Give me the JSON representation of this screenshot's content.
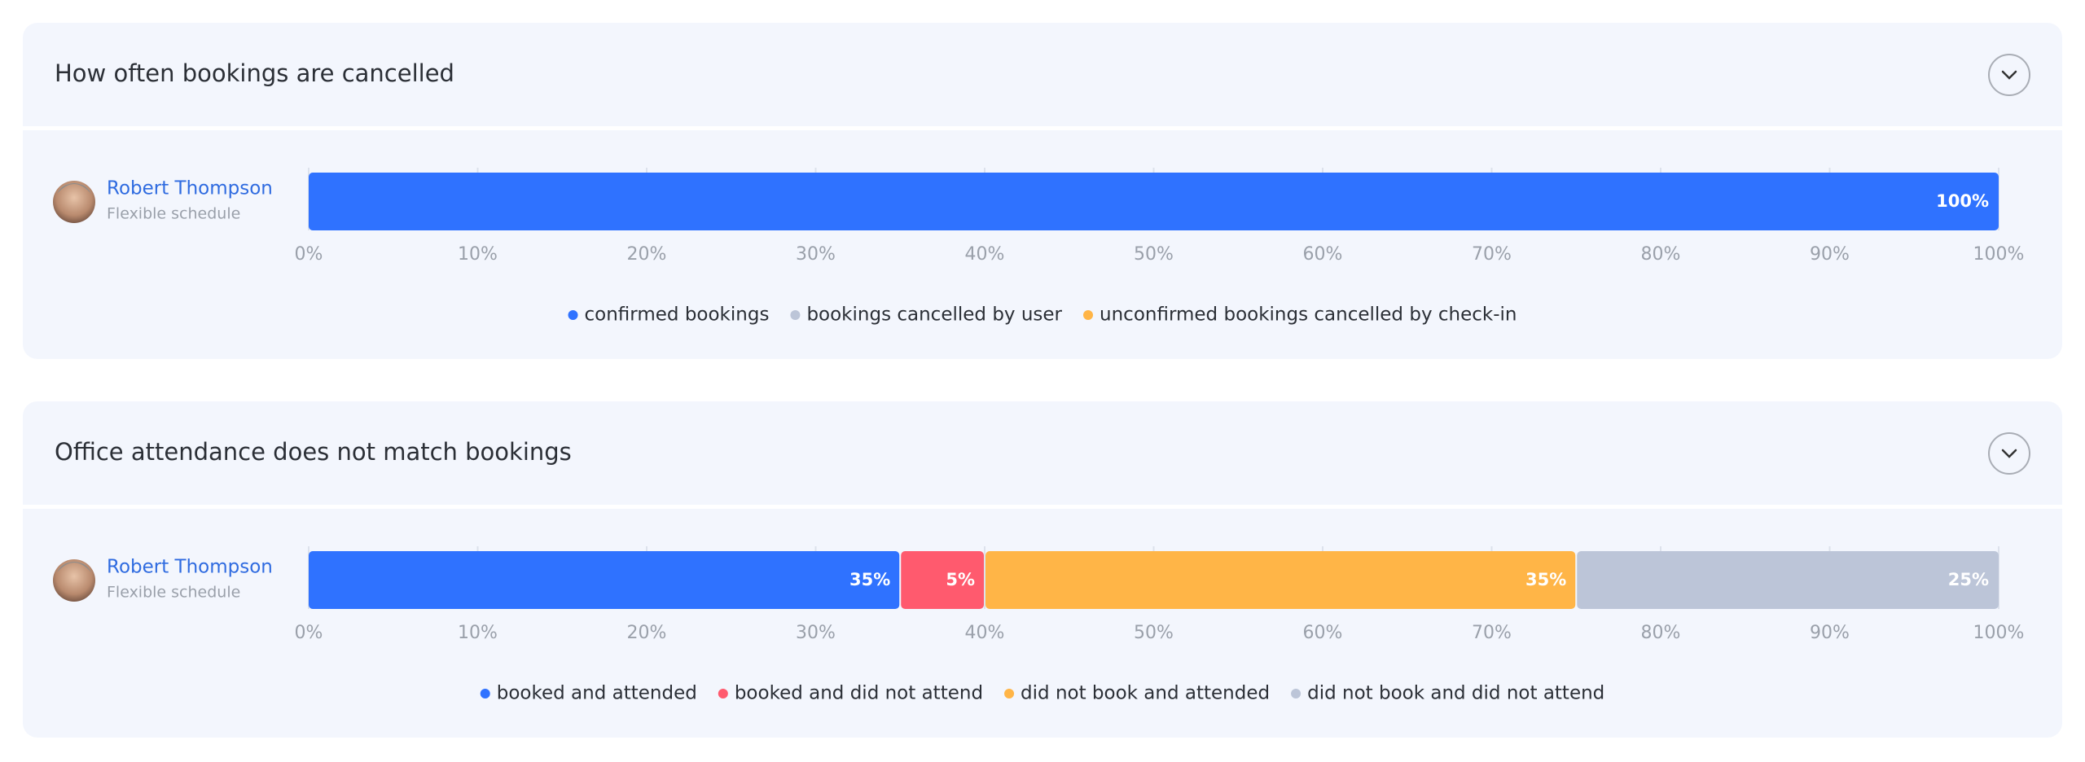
{
  "chart_data": [
    {
      "type": "stacked-bar",
      "title": "How often bookings are cancelled",
      "categories": [
        "Robert Thompson"
      ],
      "category_subtitles": [
        "Flexible schedule"
      ],
      "series": [
        {
          "name": "confirmed bookings",
          "color": "#2f72ff",
          "values": [
            100
          ],
          "value_labels": [
            "100%"
          ]
        },
        {
          "name": "bookings cancelled by user",
          "color": "#bcc5d8",
          "values": [
            0
          ]
        },
        {
          "name": "unconfirmed bookings cancelled by check-in",
          "color": "#ffb547",
          "values": [
            0
          ]
        }
      ],
      "xlim": [
        0,
        100
      ],
      "xticks": [
        {
          "value": 0,
          "label": "0%"
        },
        {
          "value": 10,
          "label": "10%"
        },
        {
          "value": 20,
          "label": "20%"
        },
        {
          "value": 30,
          "label": "30%"
        },
        {
          "value": 40,
          "label": "40%"
        },
        {
          "value": 50,
          "label": "50%"
        },
        {
          "value": 60,
          "label": "60%"
        },
        {
          "value": 70,
          "label": "70%"
        },
        {
          "value": 80,
          "label": "80%"
        },
        {
          "value": 90,
          "label": "90%"
        },
        {
          "value": 100,
          "label": "100%"
        }
      ],
      "grid": true,
      "legend": "bottom"
    },
    {
      "type": "stacked-bar",
      "title": "Office attendance does not match bookings",
      "categories": [
        "Robert Thompson"
      ],
      "category_subtitles": [
        "Flexible schedule"
      ],
      "series": [
        {
          "name": "booked and attended",
          "color": "#2f72ff",
          "values": [
            35
          ],
          "value_labels": [
            "35%"
          ]
        },
        {
          "name": "booked and did not attend",
          "color": "#ff5a6e",
          "values": [
            5
          ],
          "value_labels": [
            "5%"
          ]
        },
        {
          "name": "did not book and attended",
          "color": "#ffb547",
          "values": [
            35
          ],
          "value_labels": [
            "35%"
          ]
        },
        {
          "name": "did not book and did not attend",
          "color": "#bcc5d8",
          "values": [
            25
          ],
          "value_labels": [
            "25%"
          ]
        }
      ],
      "xlim": [
        0,
        100
      ],
      "xticks": [
        {
          "value": 0,
          "label": "0%"
        },
        {
          "value": 10,
          "label": "10%"
        },
        {
          "value": 20,
          "label": "20%"
        },
        {
          "value": 30,
          "label": "30%"
        },
        {
          "value": 40,
          "label": "40%"
        },
        {
          "value": 50,
          "label": "50%"
        },
        {
          "value": 60,
          "label": "60%"
        },
        {
          "value": 70,
          "label": "70%"
        },
        {
          "value": 80,
          "label": "80%"
        },
        {
          "value": 90,
          "label": "90%"
        },
        {
          "value": 100,
          "label": "100%"
        }
      ],
      "grid": true,
      "legend": "bottom"
    }
  ]
}
